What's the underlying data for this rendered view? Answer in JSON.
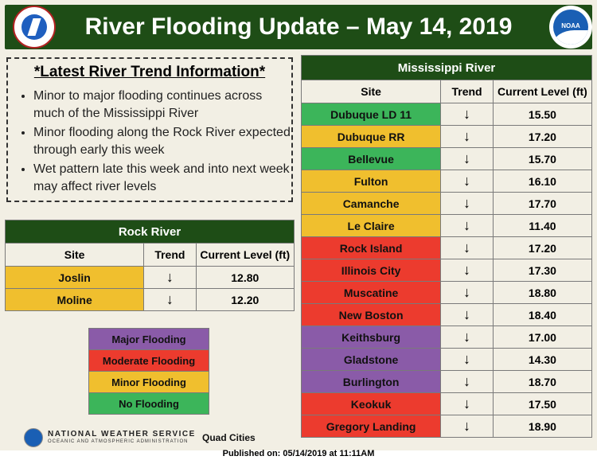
{
  "header": {
    "title": "River Flooding Update – May 14, 2019",
    "left_logo": "nws-logo",
    "right_logo": "noaa-logo",
    "right_logo_text": "NOAA"
  },
  "trend_info": {
    "title": "*Latest River Trend Information*",
    "bullets": [
      "Minor to major flooding continues across much of the Mississippi River",
      "Minor flooding along the Rock River expected through early this week",
      "Wet pattern late this week and into next week may affect river levels"
    ]
  },
  "colors": {
    "major": "#8a5ba8",
    "moderate": "#ec3b2e",
    "minor": "#f0bf2e",
    "none": "#3cb55a",
    "header_bg": "#1e4d16"
  },
  "rock_river": {
    "title": "Rock River",
    "columns": [
      "Site",
      "Trend",
      "Current Level (ft)"
    ],
    "rows": [
      {
        "site": "Joslin",
        "trend": "↓",
        "level": "12.80",
        "category": "minor"
      },
      {
        "site": "Moline",
        "trend": "↓",
        "level": "12.20",
        "category": "minor"
      }
    ]
  },
  "mississippi_river": {
    "title": "Mississippi River",
    "columns": [
      "Site",
      "Trend",
      "Current Level (ft)"
    ],
    "rows": [
      {
        "site": "Dubuque LD 11",
        "trend": "↓",
        "level": "15.50",
        "category": "none"
      },
      {
        "site": "Dubuque RR",
        "trend": "↓",
        "level": "17.20",
        "category": "minor"
      },
      {
        "site": "Bellevue",
        "trend": "↓",
        "level": "15.70",
        "category": "none"
      },
      {
        "site": "Fulton",
        "trend": "↓",
        "level": "16.10",
        "category": "minor"
      },
      {
        "site": "Camanche",
        "trend": "↓",
        "level": "17.70",
        "category": "minor"
      },
      {
        "site": "Le Claire",
        "trend": "↓",
        "level": "11.40",
        "category": "minor"
      },
      {
        "site": "Rock Island",
        "trend": "↓",
        "level": "17.20",
        "category": "moderate"
      },
      {
        "site": "Illinois City",
        "trend": "↓",
        "level": "17.30",
        "category": "moderate"
      },
      {
        "site": "Muscatine",
        "trend": "↓",
        "level": "18.80",
        "category": "moderate"
      },
      {
        "site": "New Boston",
        "trend": "↓",
        "level": "18.40",
        "category": "moderate"
      },
      {
        "site": "Keithsburg",
        "trend": "↓",
        "level": "17.00",
        "category": "major"
      },
      {
        "site": "Gladstone",
        "trend": "↓",
        "level": "14.30",
        "category": "major"
      },
      {
        "site": "Burlington",
        "trend": "↓",
        "level": "18.70",
        "category": "major"
      },
      {
        "site": "Keokuk",
        "trend": "↓",
        "level": "17.50",
        "category": "moderate"
      },
      {
        "site": "Gregory Landing",
        "trend": "↓",
        "level": "18.90",
        "category": "moderate"
      }
    ]
  },
  "legend": [
    {
      "label": "Major Flooding",
      "category": "major"
    },
    {
      "label": "Moderate Flooding",
      "category": "moderate"
    },
    {
      "label": "Minor Flooding",
      "category": "minor"
    },
    {
      "label": "No Flooding",
      "category": "none"
    }
  ],
  "footer": {
    "agency": "NATIONAL WEATHER SERVICE",
    "agency_sub": "OCEANIC AND ATMOSPHERIC ADMINISTRATION",
    "office": "Quad Cities",
    "published": "Published on: 05/14/2019 at 11:11AM"
  }
}
